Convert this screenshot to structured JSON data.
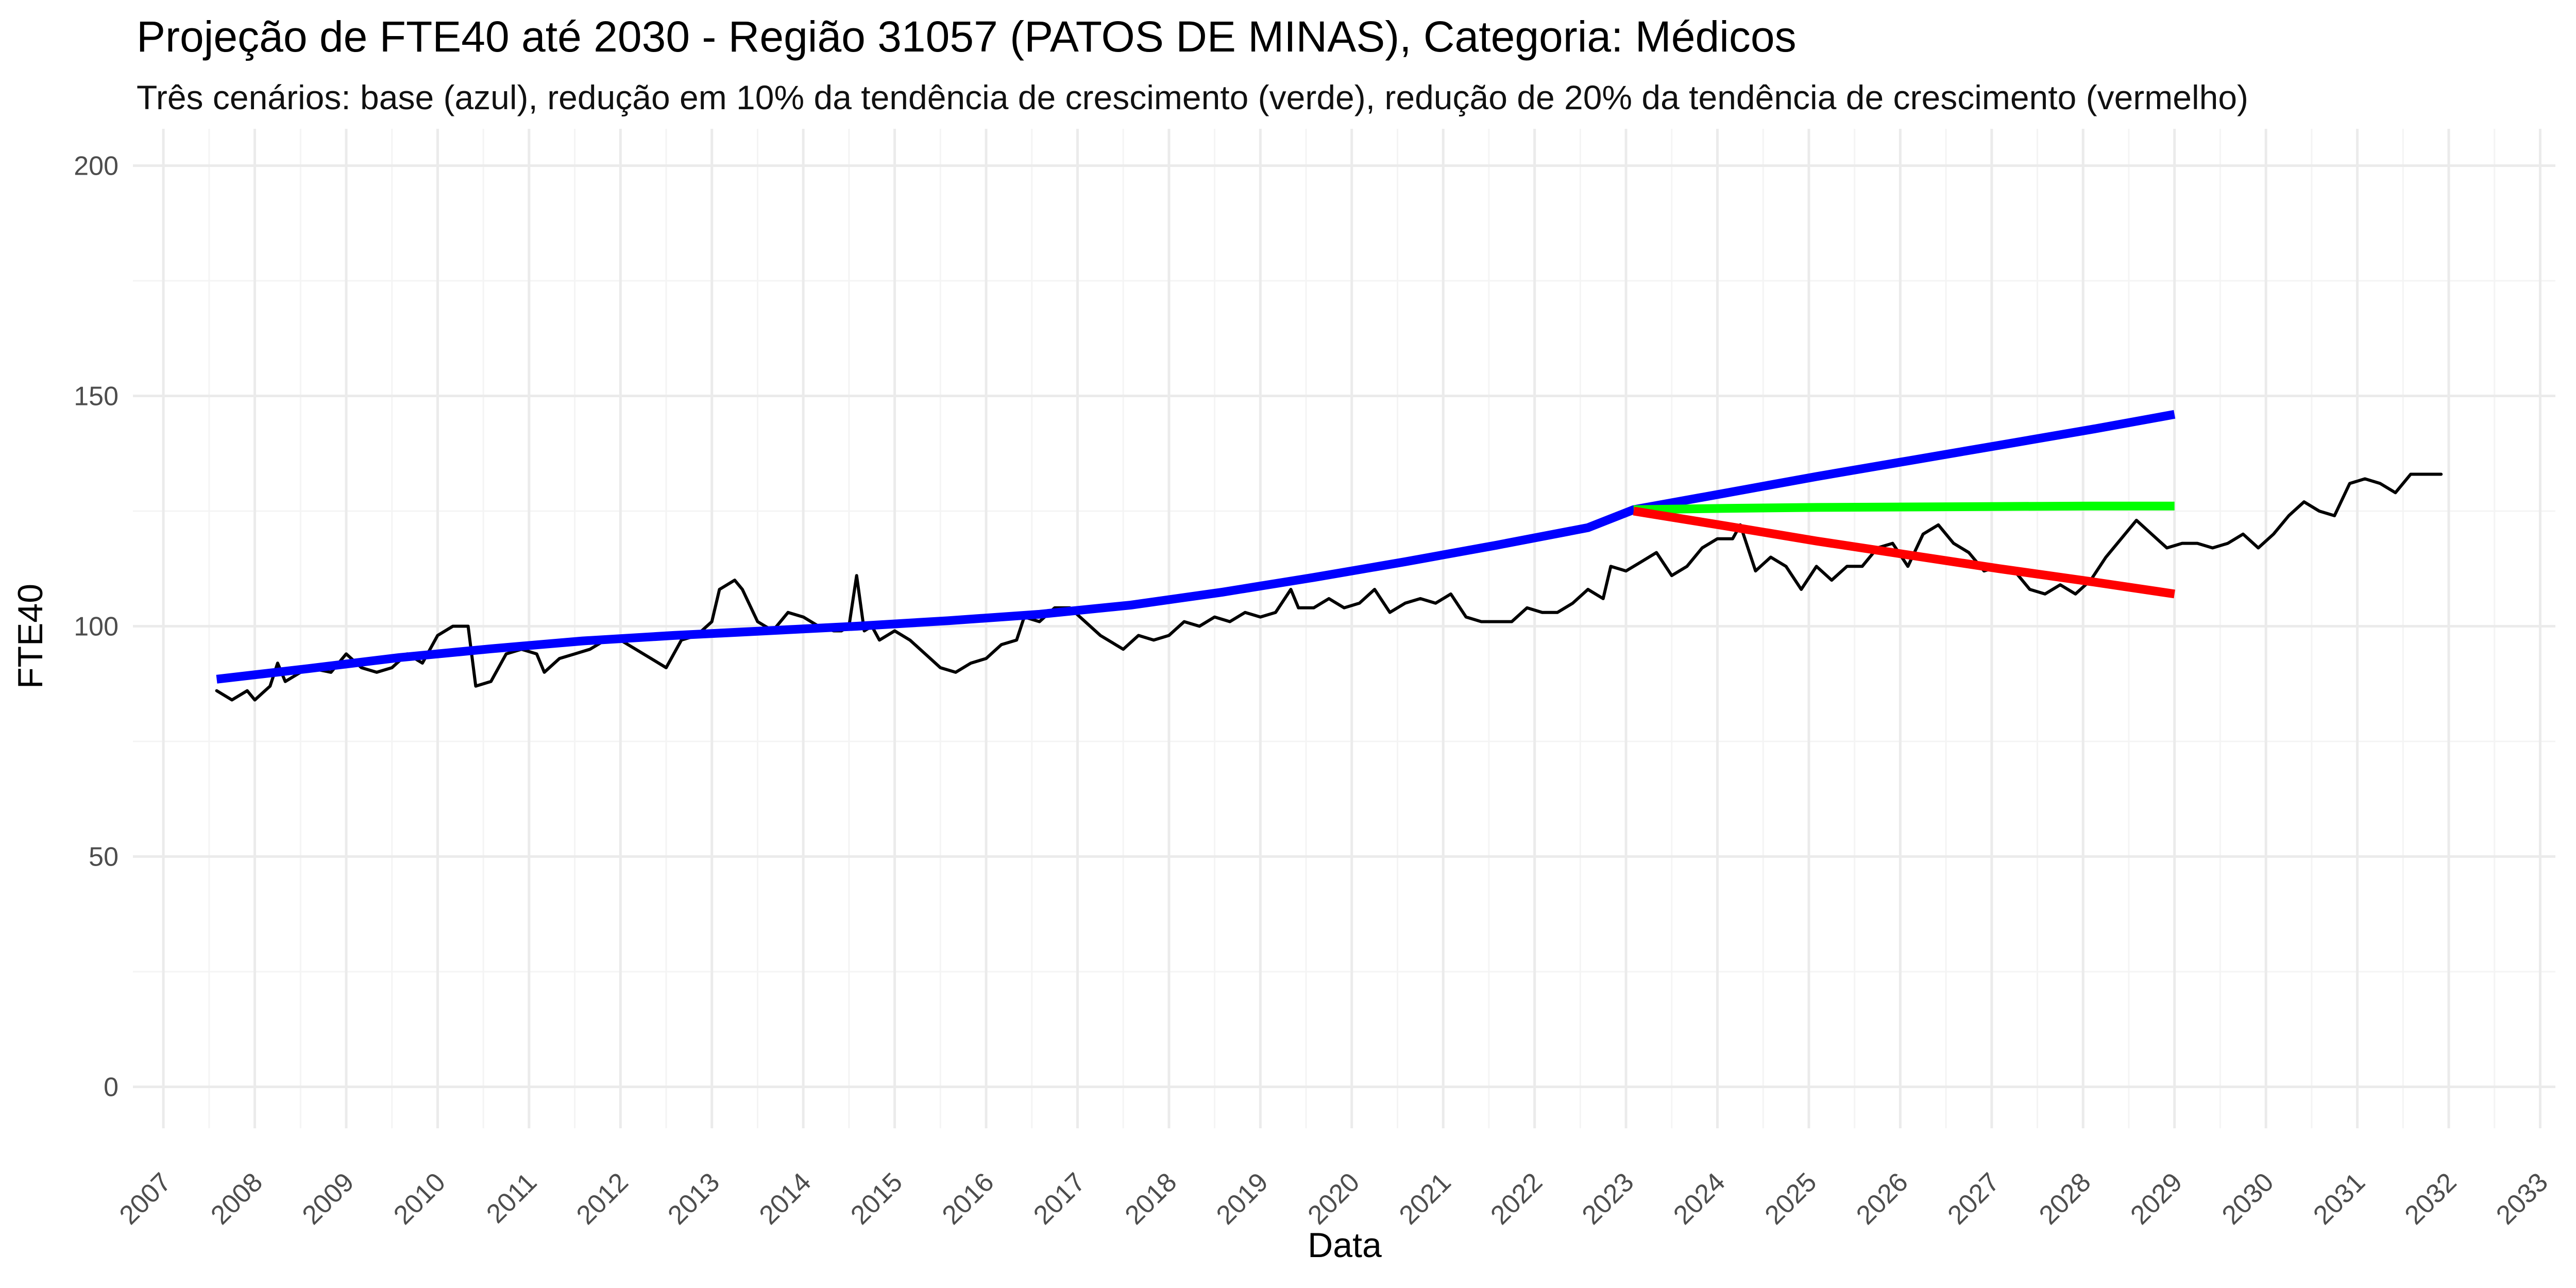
{
  "chart_data": {
    "type": "line",
    "title": "Projeção de FTE40 até 2030 - Região 31057 (PATOS DE MINAS), Categoria: Médicos",
    "subtitle": "Três cenários: base (azul), redução em 10% da tendência de crescimento (verde), redução de 20% da tendência de crescimento (vermelho)",
    "xlabel": "Data",
    "ylabel": "FTE40",
    "xlim": [
      "2006-09-01",
      "2033-03-01"
    ],
    "ylim": [
      -9,
      208
    ],
    "grid": true,
    "legend": "none",
    "x_ticks": [
      "2007",
      "2008",
      "2009",
      "2010",
      "2011",
      "2012",
      "2013",
      "2014",
      "2015",
      "2016",
      "2017",
      "2018",
      "2019",
      "2020",
      "2021",
      "2022",
      "2023",
      "2024",
      "2025",
      "2026",
      "2027",
      "2028",
      "2029",
      "2030",
      "2031",
      "2032",
      "2033"
    ],
    "y_ticks": [
      "0",
      "50",
      "100",
      "150",
      "200"
    ],
    "observed": {
      "color": "#000000",
      "points": [
        [
          "2007-08",
          86
        ],
        [
          "2007-10",
          84
        ],
        [
          "2007-12",
          86
        ],
        [
          "2008-01",
          84
        ],
        [
          "2008-03",
          87
        ],
        [
          "2008-04",
          92
        ],
        [
          "2008-05",
          88
        ],
        [
          "2008-08",
          91
        ],
        [
          "2008-11",
          90
        ],
        [
          "2009-01",
          94
        ],
        [
          "2009-03",
          91
        ],
        [
          "2009-05",
          90
        ],
        [
          "2009-07",
          91
        ],
        [
          "2009-09",
          94
        ],
        [
          "2009-11",
          92
        ],
        [
          "2010-01",
          98
        ],
        [
          "2010-03",
          100
        ],
        [
          "2010-05",
          100
        ],
        [
          "2010-06",
          87
        ],
        [
          "2010-08",
          88
        ],
        [
          "2010-10",
          94
        ],
        [
          "2010-12",
          95
        ],
        [
          "2011-02",
          94
        ],
        [
          "2011-03",
          90
        ],
        [
          "2011-05",
          93
        ],
        [
          "2011-07",
          94
        ],
        [
          "2011-09",
          95
        ],
        [
          "2011-11",
          97
        ],
        [
          "2012-01",
          97
        ],
        [
          "2012-03",
          95
        ],
        [
          "2012-05",
          93
        ],
        [
          "2012-07",
          91
        ],
        [
          "2012-09",
          97
        ],
        [
          "2012-11",
          98
        ],
        [
          "2013-01",
          101
        ],
        [
          "2013-02",
          108
        ],
        [
          "2013-04",
          110
        ],
        [
          "2013-05",
          108
        ],
        [
          "2013-07",
          101
        ],
        [
          "2013-09",
          99
        ],
        [
          "2013-11",
          103
        ],
        [
          "2014-01",
          102
        ],
        [
          "2014-03",
          100
        ],
        [
          "2014-05",
          99
        ],
        [
          "2014-06",
          99
        ],
        [
          "2014-07",
          100
        ],
        [
          "2014-08",
          111
        ],
        [
          "2014-09",
          99
        ],
        [
          "2014-10",
          100
        ],
        [
          "2014-11",
          97
        ],
        [
          "2015-01",
          99
        ],
        [
          "2015-03",
          97
        ],
        [
          "2015-05",
          94
        ],
        [
          "2015-07",
          91
        ],
        [
          "2015-09",
          90
        ],
        [
          "2015-11",
          92
        ],
        [
          "2016-01",
          93
        ],
        [
          "2016-03",
          96
        ],
        [
          "2016-05",
          97
        ],
        [
          "2016-06",
          102
        ],
        [
          "2016-08",
          101
        ],
        [
          "2016-10",
          104
        ],
        [
          "2016-12",
          104
        ],
        [
          "2017-02",
          101
        ],
        [
          "2017-04",
          98
        ],
        [
          "2017-06",
          96
        ],
        [
          "2017-07",
          95
        ],
        [
          "2017-09",
          98
        ],
        [
          "2017-11",
          97
        ],
        [
          "2018-01",
          98
        ],
        [
          "2018-03",
          101
        ],
        [
          "2018-05",
          100
        ],
        [
          "2018-07",
          102
        ],
        [
          "2018-09",
          101
        ],
        [
          "2018-11",
          103
        ],
        [
          "2019-01",
          102
        ],
        [
          "2019-03",
          103
        ],
        [
          "2019-05",
          108
        ],
        [
          "2019-06",
          104
        ],
        [
          "2019-08",
          104
        ],
        [
          "2019-10",
          106
        ],
        [
          "2019-12",
          104
        ],
        [
          "2020-02",
          105
        ],
        [
          "2020-04",
          108
        ],
        [
          "2020-06",
          103
        ],
        [
          "2020-08",
          105
        ],
        [
          "2020-10",
          106
        ],
        [
          "2020-12",
          105
        ],
        [
          "2021-02",
          107
        ],
        [
          "2021-04",
          102
        ],
        [
          "2021-06",
          101
        ],
        [
          "2021-08",
          101
        ],
        [
          "2021-10",
          101
        ],
        [
          "2021-12",
          104
        ],
        [
          "2022-02",
          103
        ],
        [
          "2022-04",
          103
        ],
        [
          "2022-06",
          105
        ],
        [
          "2022-08",
          108
        ],
        [
          "2022-10",
          106
        ],
        [
          "2022-11",
          113
        ],
        [
          "2023-01",
          112
        ],
        [
          "2023-03",
          114
        ],
        [
          "2023-05",
          116
        ],
        [
          "2023-07",
          111
        ],
        [
          "2023-09",
          113
        ],
        [
          "2023-11",
          117
        ],
        [
          "2024-01",
          119
        ],
        [
          "2024-03",
          119
        ],
        [
          "2024-04",
          122
        ],
        [
          "2024-06",
          112
        ],
        [
          "2024-08",
          115
        ],
        [
          "2024-10",
          113
        ],
        [
          "2024-12",
          108
        ],
        [
          "2025-02",
          113
        ],
        [
          "2025-04",
          110
        ],
        [
          "2025-06",
          113
        ],
        [
          "2025-08",
          113
        ],
        [
          "2025-10",
          117
        ],
        [
          "2025-12",
          118
        ],
        [
          "2026-02",
          113
        ],
        [
          "2026-04",
          120
        ],
        [
          "2026-06",
          122
        ],
        [
          "2026-08",
          118
        ],
        [
          "2026-10",
          116
        ],
        [
          "2026-12",
          112
        ],
        [
          "2027-02",
          113
        ],
        [
          "2027-04",
          112
        ],
        [
          "2027-06",
          108
        ],
        [
          "2027-08",
          107
        ],
        [
          "2027-10",
          109
        ],
        [
          "2027-12",
          107
        ],
        [
          "2028-02",
          110
        ],
        [
          "2028-04",
          115
        ],
        [
          "2028-06",
          119
        ],
        [
          "2028-08",
          123
        ],
        [
          "2028-10",
          120
        ],
        [
          "2028-12",
          117
        ],
        [
          "2029-02",
          118
        ],
        [
          "2029-04",
          118
        ],
        [
          "2029-06",
          117
        ],
        [
          "2029-08",
          118
        ],
        [
          "2029-10",
          120
        ],
        [
          "2029-12",
          117
        ],
        [
          "2030-02",
          120
        ],
        [
          "2030-04",
          124
        ],
        [
          "2030-06",
          127
        ],
        [
          "2030-08",
          125
        ],
        [
          "2030-10",
          124
        ],
        [
          "2030-12",
          131
        ],
        [
          "2031-02",
          132
        ],
        [
          "2031-04",
          131
        ],
        [
          "2031-06",
          129
        ],
        [
          "2031-08",
          133
        ],
        [
          "2031-10",
          133
        ],
        [
          "2031-12",
          133
        ]
      ]
    },
    "series": [
      {
        "color": "#0000ff",
        "points": [
          [
            "2007-08",
            88.5
          ],
          [
            "2008-08",
            90.8
          ],
          [
            "2009-08",
            93.2
          ],
          [
            "2010-08",
            95.1
          ],
          [
            "2011-08",
            96.8
          ],
          [
            "2012-08",
            98.0
          ],
          [
            "2013-08",
            99.0
          ],
          [
            "2014-08",
            100.0
          ],
          [
            "2015-08",
            101.2
          ],
          [
            "2016-08",
            102.6
          ],
          [
            "2017-08",
            104.6
          ],
          [
            "2018-08",
            107.4
          ],
          [
            "2019-08",
            110.6
          ],
          [
            "2020-08",
            114.0
          ],
          [
            "2021-08",
            117.6
          ],
          [
            "2022-08",
            121.4
          ],
          [
            "2023-02",
            125.3
          ],
          [
            "2024-02",
            128.9
          ],
          [
            "2025-02",
            132.5
          ],
          [
            "2026-02",
            135.9
          ],
          [
            "2027-02",
            139.3
          ],
          [
            "2028-02",
            142.7
          ],
          [
            "2029-01",
            146.0
          ]
        ]
      },
      {
        "color": "#00ff00",
        "points": [
          [
            "2023-02",
            125.3
          ],
          [
            "2024-02",
            125.6
          ],
          [
            "2025-02",
            125.8
          ],
          [
            "2026-02",
            125.9
          ],
          [
            "2027-02",
            126.0
          ],
          [
            "2028-02",
            126.1
          ],
          [
            "2029-01",
            126.1
          ]
        ]
      },
      {
        "color": "#ff0000",
        "points": [
          [
            "2023-02",
            125.0
          ],
          [
            "2024-02",
            121.8
          ],
          [
            "2025-02",
            118.5
          ],
          [
            "2026-02",
            115.5
          ],
          [
            "2027-02",
            112.5
          ],
          [
            "2028-02",
            109.7
          ],
          [
            "2029-01",
            107.0
          ]
        ]
      }
    ]
  }
}
